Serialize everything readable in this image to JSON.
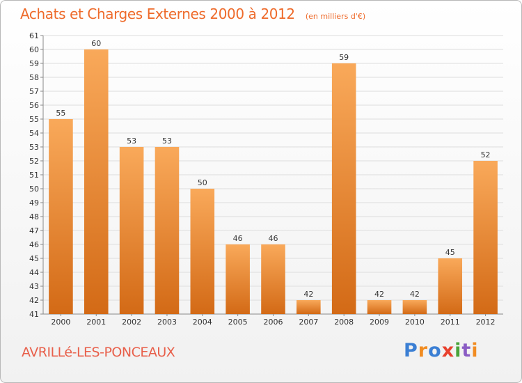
{
  "title": "Achats et Charges Externes 2000 à 2012",
  "subtitle": "(en milliers d'€)",
  "location": "AVRILLé-LES-PONCEAUX",
  "brand": "Proxiti",
  "colors": {
    "title": "#ee6a2a",
    "bar_light": "#f9a95a",
    "bar_dark": "#d36a16",
    "grid": "#dddddd",
    "logo": [
      "#3b7fd4",
      "#f18c22",
      "#3b7fd4",
      "#e8412e",
      "#4aa33a",
      "#8a5cc4",
      "#f18c22"
    ]
  },
  "chart_data": {
    "type": "bar",
    "categories": [
      "2000",
      "2001",
      "2002",
      "2003",
      "2004",
      "2005",
      "2006",
      "2007",
      "2008",
      "2009",
      "2010",
      "2011",
      "2012"
    ],
    "values": [
      55,
      60,
      53,
      53,
      50,
      46,
      46,
      42,
      59,
      42,
      42,
      45,
      52
    ],
    "title": "Achats et Charges Externes 2000 à 2012",
    "xlabel": "",
    "ylabel": "",
    "ylim": [
      41,
      61
    ],
    "yticks": [
      41,
      42,
      43,
      44,
      45,
      46,
      47,
      48,
      49,
      50,
      51,
      52,
      53,
      54,
      55,
      56,
      57,
      58,
      59,
      60,
      61
    ],
    "grid": true,
    "legend": "none"
  }
}
